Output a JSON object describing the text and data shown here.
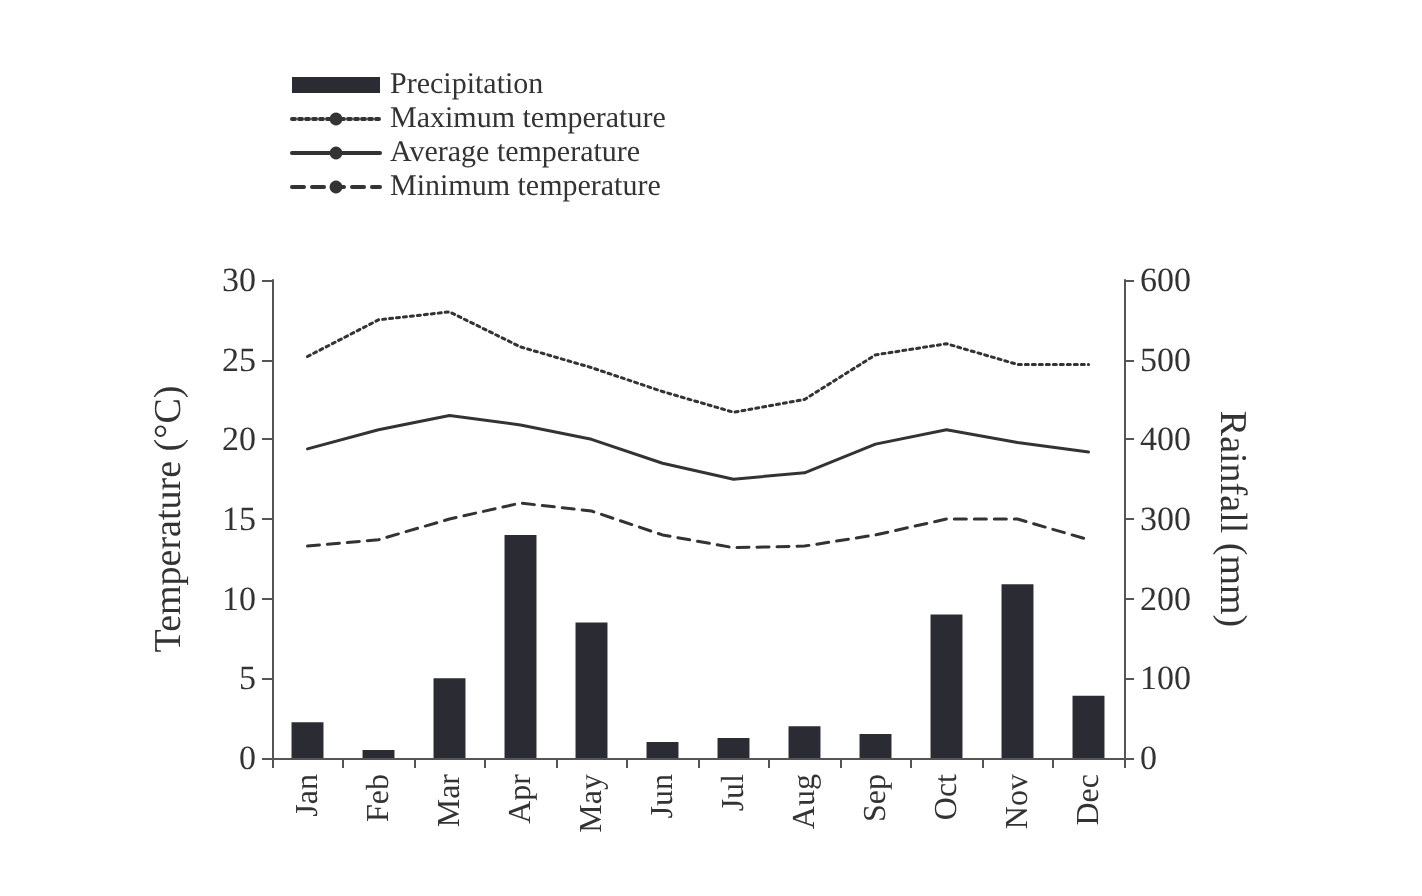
{
  "chart_data": {
    "type": "line",
    "categories": [
      "Jan",
      "Feb",
      "Mar",
      "Apr",
      "May",
      "Jun",
      "Jul",
      "Aug",
      "Sep",
      "Oct",
      "Nov",
      "Dec"
    ],
    "series": [
      {
        "name": "Precipitation",
        "type": "bar",
        "axis": "y2",
        "color": "#2b2b33",
        "values": [
          45,
          10,
          100,
          280,
          170,
          20,
          25,
          40,
          30,
          180,
          218,
          78
        ]
      },
      {
        "name": "Maximum temperature",
        "color": "#333333",
        "line_style": "dotted",
        "values": [
          25.2,
          27.5,
          28,
          25.8,
          24.5,
          23,
          21.7,
          22.5,
          25.3,
          26,
          24.7,
          24.7
        ]
      },
      {
        "name": "Average temperature",
        "color": "#333333",
        "line_style": "solid",
        "values": [
          19.4,
          20.6,
          21.5,
          20.9,
          20,
          18.5,
          17.5,
          17.9,
          19.7,
          20.6,
          19.8,
          19.2
        ]
      },
      {
        "name": "Minimum temperature",
        "color": "#333333",
        "line_style": "dashed",
        "values": [
          13.3,
          13.7,
          15,
          16,
          15.5,
          14,
          13.2,
          13.3,
          14,
          15,
          15,
          13.7
        ]
      }
    ],
    "ylabel": "Temperature (°C)",
    "y2label": "Rainfall (mm)",
    "ylim": [
      0,
      30
    ],
    "yticks": [
      0,
      5,
      10,
      15,
      20,
      25,
      30
    ],
    "y2lim": [
      0,
      600
    ],
    "y2ticks": [
      0,
      100,
      200,
      300,
      400,
      500,
      600
    ],
    "marker": "none",
    "grid": false,
    "legend": "top left"
  }
}
